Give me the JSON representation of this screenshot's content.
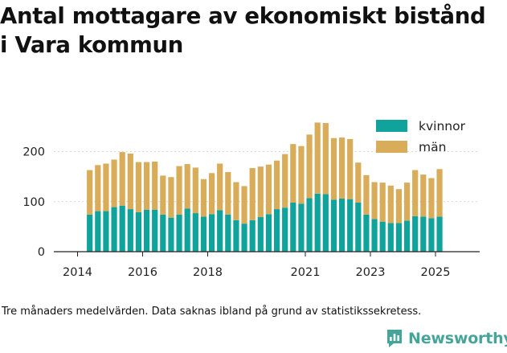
{
  "title_line1": "Antal mottagare av ekonomiskt bistånd",
  "title_line2": "i Vara kommun",
  "footnote": "Tre månaders medelvärden. Data saknas ibland på grund av statistikssekretess.",
  "brand": {
    "name": "Newsworthy",
    "color": "#46a59a",
    "icon": "bar-chart-logo-icon"
  },
  "chart_data": {
    "type": "bar",
    "stacked": true,
    "x_axis_type": "date",
    "quarters": [
      "2014-Q2",
      "2014-Q3",
      "2014-Q4",
      "2015-Q1",
      "2015-Q2",
      "2015-Q3",
      "2015-Q4",
      "2016-Q1",
      "2016-Q2",
      "2016-Q3",
      "2016-Q4",
      "2017-Q1",
      "2017-Q2",
      "2017-Q3",
      "2017-Q4",
      "2018-Q1",
      "2018-Q2",
      "2018-Q3",
      "2018-Q4",
      "2019-Q1",
      "2019-Q2",
      "2019-Q3",
      "2019-Q4",
      "2020-Q1",
      "2020-Q2",
      "2020-Q3",
      "2020-Q4",
      "2021-Q1",
      "2021-Q2",
      "2021-Q3",
      "2021-Q4",
      "2022-Q1",
      "2022-Q2",
      "2022-Q3",
      "2022-Q4",
      "2023-Q1",
      "2023-Q2",
      "2023-Q3",
      "2023-Q4",
      "2024-Q1",
      "2024-Q2",
      "2024-Q3",
      "2024-Q4",
      "2025-Q1"
    ],
    "series": [
      {
        "name": "kvinnor",
        "color": "#0fa39b",
        "values": [
          74,
          81,
          81,
          89,
          92,
          85,
          79,
          84,
          84,
          74,
          68,
          74,
          86,
          77,
          70,
          75,
          83,
          74,
          63,
          56,
          63,
          69,
          75,
          85,
          88,
          98,
          96,
          107,
          116,
          115,
          104,
          106,
          105,
          98,
          74,
          65,
          60,
          57,
          57,
          62,
          71,
          70,
          67,
          70
        ]
      },
      {
        "name": "män",
        "color": "#d9ac59",
        "values": [
          89,
          92,
          95,
          95,
          107,
          111,
          100,
          95,
          96,
          78,
          81,
          97,
          89,
          91,
          75,
          82,
          93,
          85,
          76,
          75,
          104,
          101,
          99,
          97,
          107,
          117,
          115,
          127,
          142,
          142,
          123,
          122,
          120,
          80,
          79,
          74,
          78,
          75,
          68,
          76,
          92,
          84,
          80,
          95
        ]
      }
    ],
    "legend": {
      "position": "top-right"
    },
    "y_ticks": [
      0,
      100,
      200
    ],
    "ylim": [
      0,
      300
    ],
    "x_ticks": [
      "2014",
      "2016",
      "2018",
      "2021",
      "2023",
      "2025"
    ],
    "grid": "horizontal"
  }
}
